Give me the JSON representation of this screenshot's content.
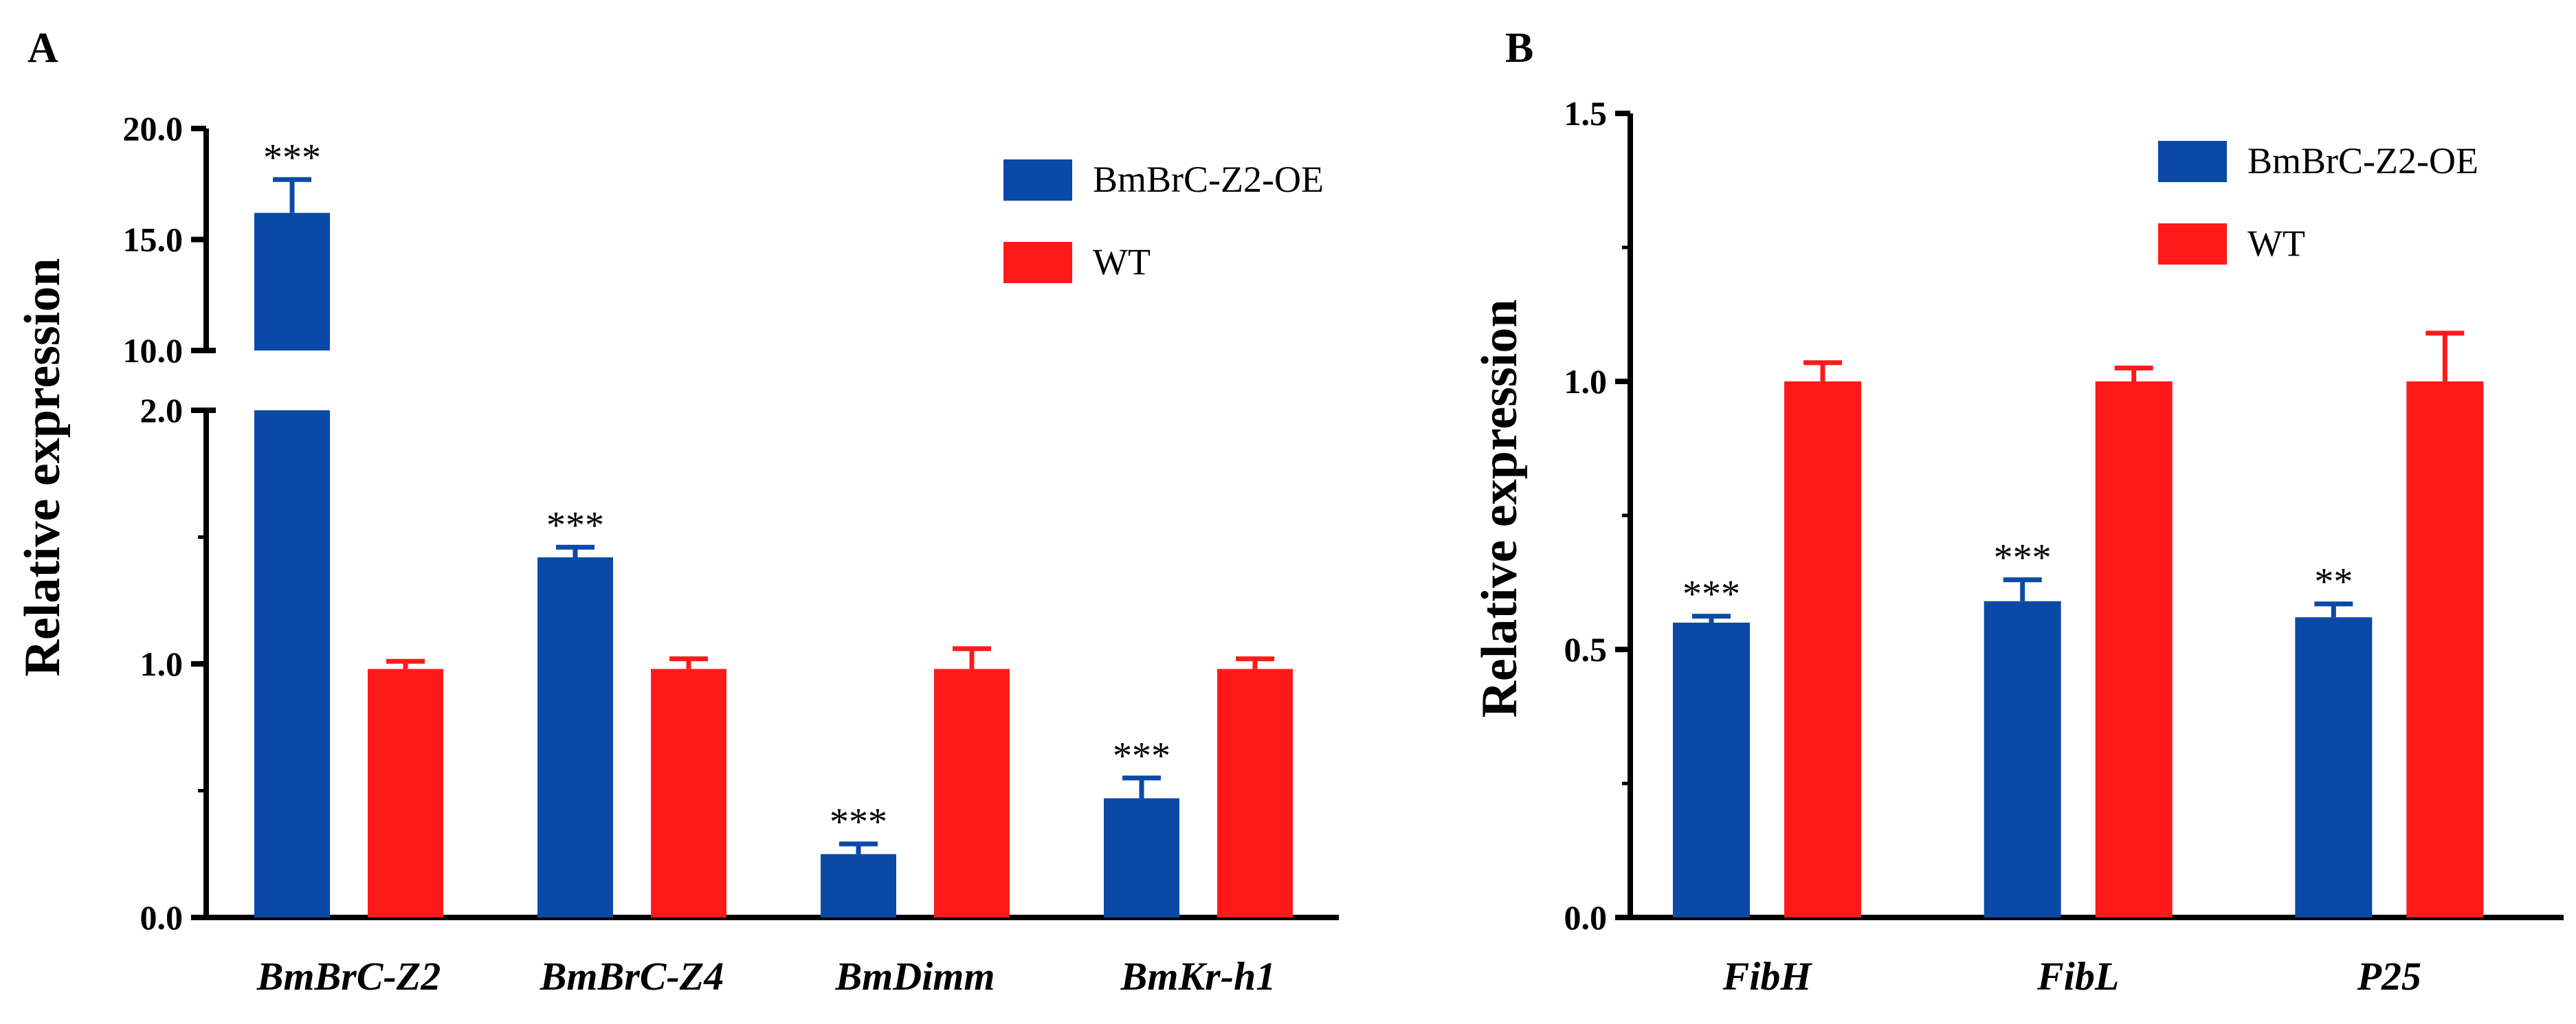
{
  "chart_data": [
    {
      "panel": "A",
      "type": "bar",
      "xlabel": "",
      "ylabel": "Relative expression",
      "axis_break": true,
      "ylim_lower": [
        0,
        2.0
      ],
      "ylim_upper": [
        10.0,
        20.0
      ],
      "yticks_lower": [
        "0.0",
        "1.0",
        "2.0"
      ],
      "yticks_upper": [
        "10.0",
        "15.0",
        "20.0"
      ],
      "categories": [
        "BmBrC-Z2",
        "BmBrC-Z4",
        "BmDimm",
        "BmKr-h1"
      ],
      "series": [
        {
          "name": "BmBrC-Z2-OE",
          "color": "#0a4aa6",
          "values": [
            16.2,
            1.42,
            0.25,
            0.47
          ],
          "errors": [
            1.5,
            0.04,
            0.04,
            0.08
          ]
        },
        {
          "name": "WT",
          "color": "#ff1a1a",
          "values": [
            0.98,
            0.98,
            0.98,
            0.98
          ],
          "errors": [
            0.03,
            0.04,
            0.08,
            0.04
          ]
        }
      ],
      "significance": [
        "***",
        "***",
        "***",
        "***"
      ],
      "legend_position": "top-right"
    },
    {
      "panel": "B",
      "type": "bar",
      "xlabel": "",
      "ylabel": "Relative expression",
      "ylim": [
        0,
        1.5
      ],
      "yticks": [
        "0.0",
        "0.5",
        "1.0",
        "1.5"
      ],
      "categories": [
        "FibH",
        "FibL",
        "P25"
      ],
      "series": [
        {
          "name": "BmBrC-Z2-OE",
          "color": "#0a4aa6",
          "values": [
            0.55,
            0.59,
            0.56
          ],
          "errors": [
            0.012,
            0.04,
            0.025
          ]
        },
        {
          "name": "WT",
          "color": "#ff1a1a",
          "values": [
            1.0,
            1.0,
            1.0
          ],
          "errors": [
            0.035,
            0.025,
            0.09
          ]
        }
      ],
      "significance": [
        "***",
        "***",
        "**"
      ],
      "legend_position": "top-right"
    }
  ]
}
